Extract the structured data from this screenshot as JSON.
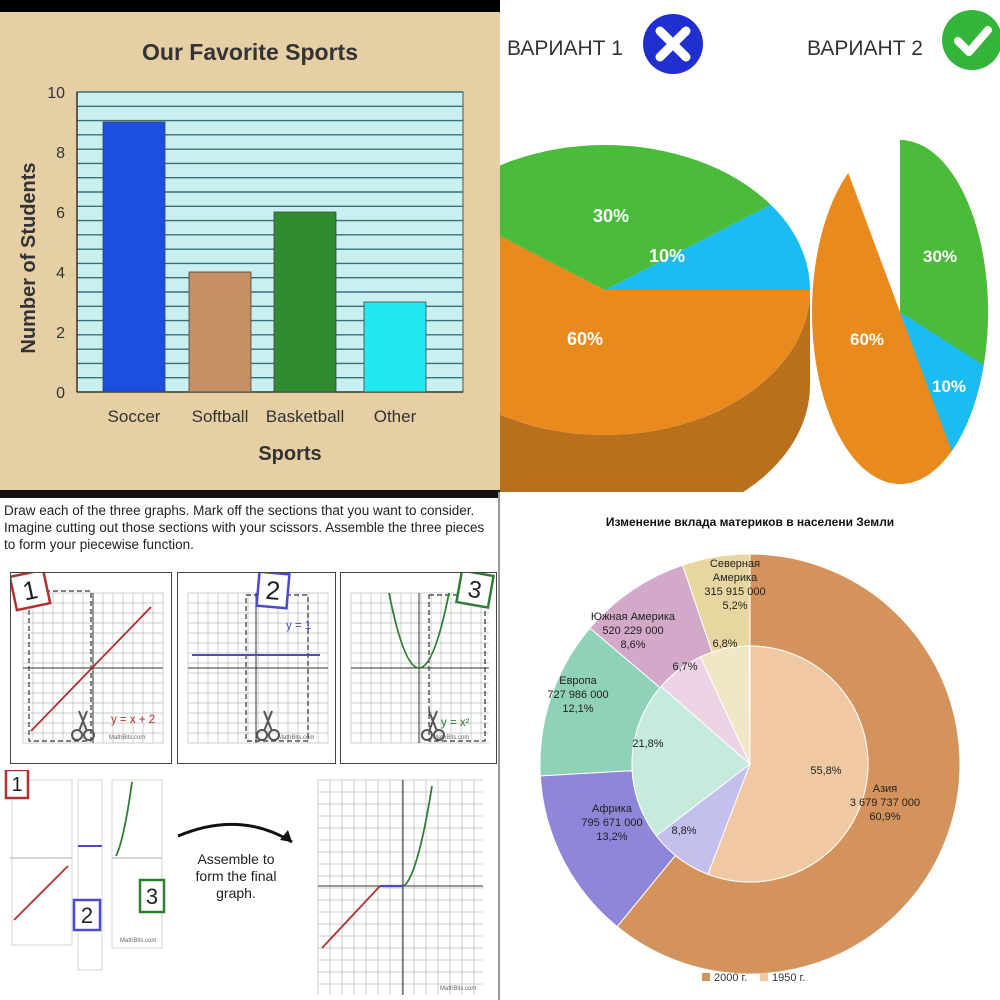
{
  "bar_chart": {
    "chart_data": {
      "type": "bar",
      "title": "Our Favorite Sports",
      "xlabel": "Sports",
      "ylabel": "Number of Students",
      "categories": [
        "Soccer",
        "Softball",
        "Basketball",
        "Other"
      ],
      "values": [
        9,
        4,
        6,
        3
      ],
      "colors": [
        "#1a4fe0",
        "#c48f62",
        "#2e8b2e",
        "#22e8f0"
      ],
      "yticks": [
        "0",
        "2",
        "4",
        "6",
        "8",
        "10"
      ],
      "ylim": [
        0,
        10
      ],
      "grid": true,
      "plot_bg": "#c8f0f0"
    }
  },
  "variants": {
    "variant1": {
      "label": "ВАРИАНТ 1",
      "icon": "x-icon",
      "icon_color": "#1f2fd0",
      "chart_data": {
        "type": "pie",
        "style": "3d",
        "labels": [
          "60%",
          "30%",
          "10%"
        ],
        "values": [
          60,
          30,
          10
        ],
        "colors": [
          "#e88a1e",
          "#4bbb3c",
          "#1bbcf2"
        ]
      }
    },
    "variant2": {
      "label": "ВАРИАНТ 2",
      "icon": "check-icon",
      "icon_color": "#34b53a",
      "chart_data": {
        "type": "pie",
        "style": "2d",
        "labels": [
          "60%",
          "30%",
          "10%"
        ],
        "values": [
          60,
          30,
          10
        ],
        "colors": [
          "#e88a1e",
          "#4bbb3c",
          "#1bbcf2"
        ]
      }
    }
  },
  "piecewise": {
    "instructions": "Draw each of the three graphs.  Mark off the sections that you want to consider.  Imagine cutting out those sections with your scissors.  Assemble the three pieces to form your piecewise function.",
    "panels": [
      {
        "number": "1",
        "equation": "y = x + 2",
        "credit": "MathBits.com"
      },
      {
        "number": "2",
        "equation": "y = 1",
        "credit": "MathBits.com"
      },
      {
        "number": "3",
        "equation": "y = x²",
        "credit": "MathBits.com"
      }
    ],
    "pieces": [
      "1",
      "2",
      "3"
    ],
    "assemble_text": [
      "Assemble to",
      "form the final",
      "graph."
    ],
    "credit": "MathBits.com"
  },
  "donut": {
    "chart_data": {
      "type": "pie",
      "style": "nested donut",
      "title": "Изменение вклада материков в населени  Земли",
      "outer_series": {
        "name": "2000 г.",
        "slices": [
          {
            "region": "Азия",
            "value": "3 679 737 000",
            "percent": "60,9%"
          },
          {
            "region": "Африка",
            "value": "795 671 000",
            "percent": "13,2%"
          },
          {
            "region": "Европа",
            "value": "727 986 000",
            "percent": "12,1%"
          },
          {
            "region": "Южная Америка",
            "value": "520 229 000",
            "percent": "8,6%"
          },
          {
            "region": "Северная Америка",
            "value": "315 915 000",
            "percent": "5,2%"
          }
        ]
      },
      "inner_series": {
        "name": "1950 г.",
        "slices": [
          {
            "region": "Азия",
            "percent": "55,8%"
          },
          {
            "region": "Африка",
            "percent": "8,8%"
          },
          {
            "region": "Европа",
            "percent": "21,8%"
          },
          {
            "region": "Южная Америка",
            "percent": "6,7%"
          },
          {
            "region": "Северная Америка",
            "percent": "6,8%"
          }
        ]
      },
      "outer_colors": [
        "#d4935c",
        "#8e86d8",
        "#8fd2b8",
        "#d3a8c8",
        "#e8d6a0"
      ],
      "inner_colors": [
        "#f0c9a4",
        "#c3c0ee",
        "#c6ebdc",
        "#ecd4e4",
        "#f1e7c6"
      ],
      "legend": [
        "2000 г.",
        "1950 г."
      ],
      "legend_position": "bottom"
    }
  }
}
